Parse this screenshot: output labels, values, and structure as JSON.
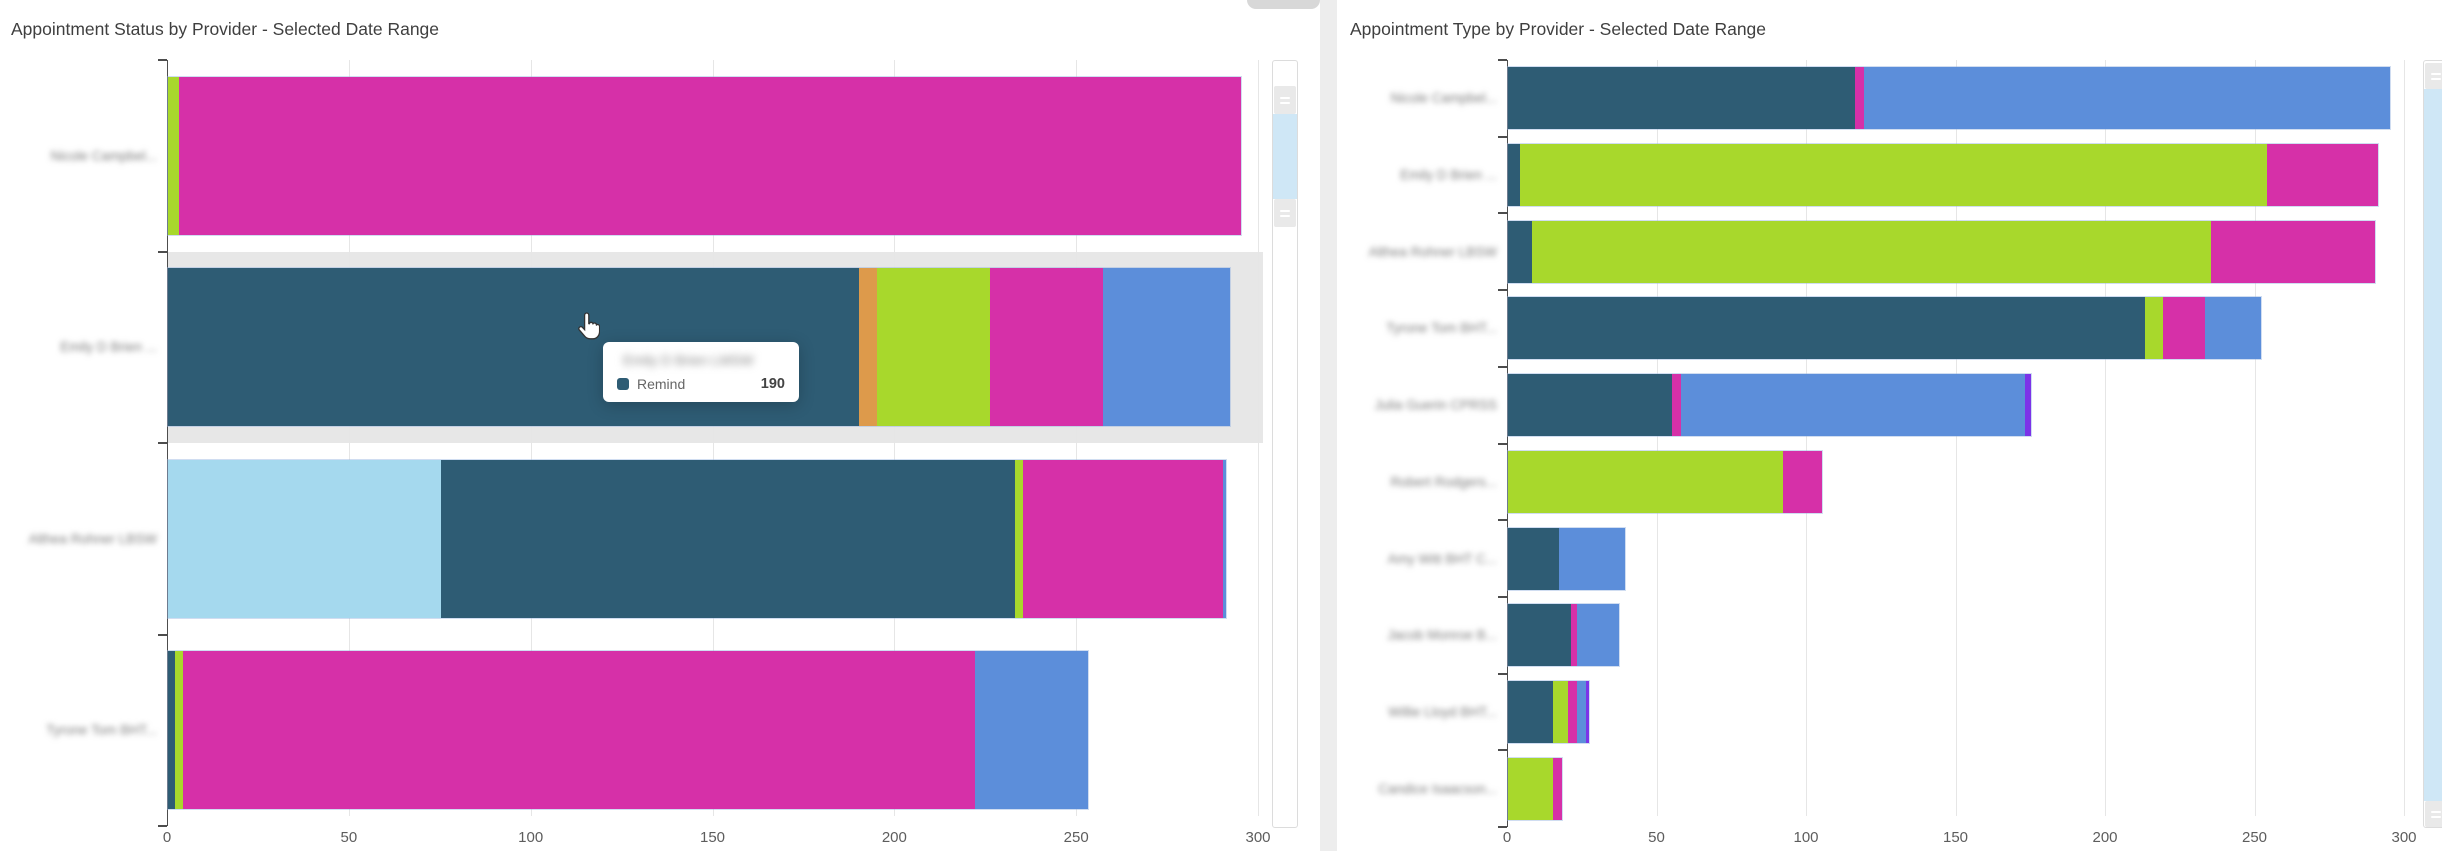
{
  "palette": {
    "teal": "#2e5c74",
    "orange": "#dd9a4b",
    "lime": "#a8d82c",
    "magenta": "#d630a8",
    "blue": "#5c8eda",
    "lightblue": "#a5d9ee",
    "purple": "#7c33e8"
  },
  "page": {
    "background": "#ededed",
    "card_background": "#ffffff"
  },
  "chart_data": [
    {
      "type": "bar",
      "orientation": "horizontal",
      "stacked": true,
      "title": "Appointment Status by Provider - Selected Date Range",
      "xlabel": "",
      "ylabel": "",
      "xlim": [
        0,
        300
      ],
      "x_ticks": [
        0,
        50,
        100,
        150,
        200,
        250,
        300
      ],
      "grid": true,
      "legend": "none",
      "labels_blurred": true,
      "categories": [
        "Nicole Campbel...",
        "Emily D Brien ...",
        "Althea Rohner LBSW",
        "Tyrone Tom BHT..."
      ],
      "bars": [
        [
          {
            "color": "lime",
            "value": 3
          },
          {
            "color": "magenta",
            "value": 292
          }
        ],
        [
          {
            "color": "teal",
            "value": 190
          },
          {
            "color": "orange",
            "value": 5
          },
          {
            "color": "lime",
            "value": 31
          },
          {
            "color": "magenta",
            "value": 31
          },
          {
            "color": "blue",
            "value": 35
          }
        ],
        [
          {
            "color": "lightblue",
            "value": 75
          },
          {
            "color": "teal",
            "value": 158
          },
          {
            "color": "lime",
            "value": 2
          },
          {
            "color": "magenta",
            "value": 55
          },
          {
            "color": "blue",
            "value": 1
          }
        ],
        [
          {
            "color": "teal",
            "value": 2
          },
          {
            "color": "lime",
            "value": 2
          },
          {
            "color": "magenta",
            "value": 218
          },
          {
            "color": "blue",
            "value": 31
          }
        ]
      ],
      "hovered_row": 1,
      "tooltip": {
        "title": "Emily D Brien LMSW",
        "series": "Remind",
        "value": "190",
        "swatch_color": "teal"
      }
    },
    {
      "type": "bar",
      "orientation": "horizontal",
      "stacked": true,
      "title": "Appointment Type by Provider - Selected Date Range",
      "xlabel": "",
      "ylabel": "",
      "xlim": [
        0,
        300
      ],
      "x_ticks": [
        0,
        50,
        100,
        150,
        200,
        250,
        300
      ],
      "grid": true,
      "legend": "none",
      "labels_blurred": true,
      "categories": [
        "Nicole Campbel...",
        "Emily D Brien ...",
        "Althea Rohner LBSW",
        "Tyrone Tom BHT...",
        "Julia Guerin CPRSS",
        "Robert Rodgers...",
        "Amy Witt BHT C...",
        "Jacob Monroe B...",
        "Willie Lloyd BHT...",
        "Candice Isaacson..."
      ],
      "bars": [
        [
          {
            "color": "teal",
            "value": 116
          },
          {
            "color": "magenta",
            "value": 3
          },
          {
            "color": "blue",
            "value": 176
          }
        ],
        [
          {
            "color": "teal",
            "value": 4
          },
          {
            "color": "lime",
            "value": 250
          },
          {
            "color": "magenta",
            "value": 37
          }
        ],
        [
          {
            "color": "teal",
            "value": 8
          },
          {
            "color": "lime",
            "value": 227
          },
          {
            "color": "magenta",
            "value": 55
          }
        ],
        [
          {
            "color": "teal",
            "value": 213
          },
          {
            "color": "lime",
            "value": 6
          },
          {
            "color": "magenta",
            "value": 14
          },
          {
            "color": "blue",
            "value": 19
          }
        ],
        [
          {
            "color": "teal",
            "value": 55
          },
          {
            "color": "magenta",
            "value": 3
          },
          {
            "color": "blue",
            "value": 115
          },
          {
            "color": "purple",
            "value": 2
          }
        ],
        [
          {
            "color": "lime",
            "value": 92
          },
          {
            "color": "magenta",
            "value": 13
          }
        ],
        [
          {
            "color": "teal",
            "value": 17
          },
          {
            "color": "blue",
            "value": 22
          }
        ],
        [
          {
            "color": "teal",
            "value": 21
          },
          {
            "color": "magenta",
            "value": 2
          },
          {
            "color": "blue",
            "value": 14
          }
        ],
        [
          {
            "color": "teal",
            "value": 15
          },
          {
            "color": "lime",
            "value": 5
          },
          {
            "color": "magenta",
            "value": 3
          },
          {
            "color": "blue",
            "value": 3
          },
          {
            "color": "purple",
            "value": 1
          }
        ],
        [
          {
            "color": "lime",
            "value": 15
          },
          {
            "color": "magenta",
            "value": 3
          }
        ]
      ],
      "hovered_row": null,
      "tooltip": null
    }
  ]
}
